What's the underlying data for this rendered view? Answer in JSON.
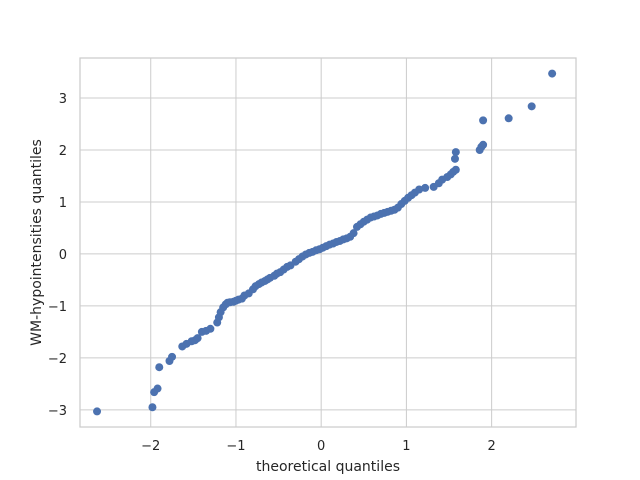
{
  "chart_data": {
    "type": "scatter",
    "title": "",
    "xlabel": "theoretical quantiles",
    "ylabel": "WM-hypointensities quantiles",
    "xlim": [
      -2.83,
      2.99
    ],
    "ylim": [
      -3.33,
      3.77
    ],
    "xticks": [
      -2,
      -1,
      0,
      1,
      2
    ],
    "xtick_labels": [
      "−2",
      "−1",
      "0",
      "1",
      "2"
    ],
    "yticks": [
      -3,
      -2,
      -1,
      0,
      1,
      2,
      3
    ],
    "ytick_labels": [
      "−3",
      "−2",
      "−1",
      "0",
      "1",
      "2",
      "3"
    ],
    "grid": true,
    "colors": {
      "point": "#4c72b0",
      "grid": "#cccccc",
      "spine": "#cccccc",
      "text": "#262626"
    },
    "points": {
      "x": [
        -2.63,
        -1.98,
        -1.96,
        -1.92,
        -1.9,
        -1.78,
        -1.75,
        -1.63,
        -1.58,
        -1.52,
        -1.48,
        -1.45,
        -1.4,
        -1.35,
        -1.3,
        -1.22,
        -1.2,
        -1.18,
        -1.15,
        -1.12,
        -1.1,
        -1.07,
        -1.03,
        -1.0,
        -0.97,
        -0.93,
        -0.9,
        -0.85,
        -0.8,
        -0.77,
        -0.73,
        -0.7,
        -0.66,
        -0.63,
        -0.6,
        -0.55,
        -0.52,
        -0.48,
        -0.44,
        -0.4,
        -0.36,
        -0.3,
        -0.26,
        -0.22,
        -0.18,
        -0.14,
        -0.1,
        -0.06,
        -0.02,
        0.02,
        0.06,
        0.1,
        0.14,
        0.18,
        0.22,
        0.26,
        0.3,
        0.34,
        0.38,
        0.42,
        0.46,
        0.5,
        0.54,
        0.58,
        0.62,
        0.66,
        0.7,
        0.74,
        0.78,
        0.82,
        0.86,
        0.9,
        0.94,
        0.98,
        1.02,
        1.06,
        1.1,
        1.15,
        1.22,
        1.32,
        1.38,
        1.42,
        1.48,
        1.52,
        1.55,
        1.58,
        1.57,
        1.58,
        1.86,
        1.88,
        1.9,
        1.9,
        2.2,
        2.47,
        2.71
      ],
      "y": [
        -3.03,
        -2.95,
        -2.66,
        -2.59,
        -2.18,
        -2.06,
        -1.98,
        -1.78,
        -1.73,
        -1.68,
        -1.66,
        -1.62,
        -1.5,
        -1.48,
        -1.44,
        -1.32,
        -1.22,
        -1.12,
        -1.03,
        -0.97,
        -0.94,
        -0.93,
        -0.92,
        -0.9,
        -0.88,
        -0.86,
        -0.8,
        -0.76,
        -0.68,
        -0.62,
        -0.58,
        -0.55,
        -0.52,
        -0.49,
        -0.46,
        -0.42,
        -0.38,
        -0.35,
        -0.3,
        -0.25,
        -0.22,
        -0.15,
        -0.1,
        -0.05,
        -0.01,
        0.02,
        0.04,
        0.07,
        0.09,
        0.12,
        0.15,
        0.18,
        0.2,
        0.23,
        0.25,
        0.28,
        0.3,
        0.33,
        0.4,
        0.52,
        0.57,
        0.62,
        0.66,
        0.7,
        0.72,
        0.74,
        0.77,
        0.79,
        0.81,
        0.83,
        0.85,
        0.89,
        0.96,
        1.02,
        1.08,
        1.13,
        1.18,
        1.24,
        1.27,
        1.29,
        1.36,
        1.43,
        1.48,
        1.53,
        1.58,
        1.62,
        1.83,
        1.96,
        2.0,
        2.06,
        2.1,
        2.57,
        2.61,
        2.84,
        3.47
      ]
    }
  }
}
